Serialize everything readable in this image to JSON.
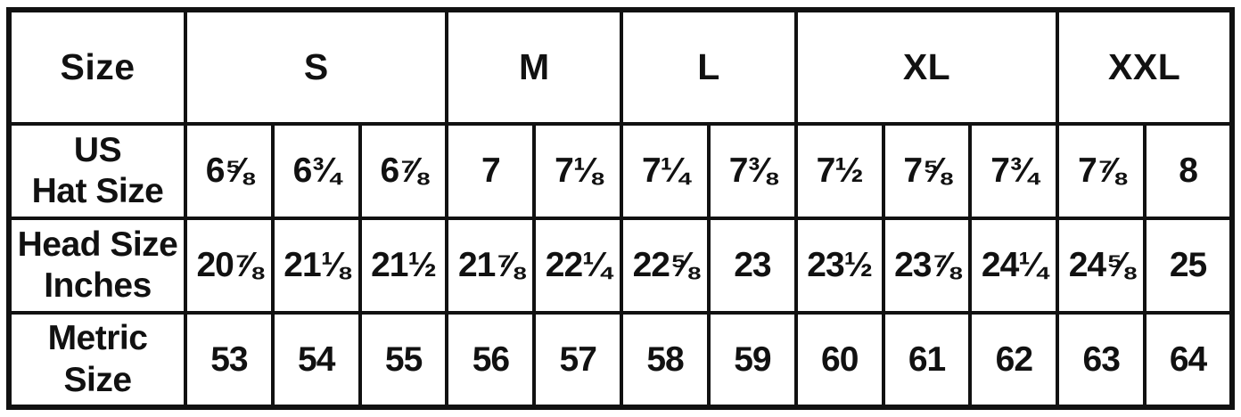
{
  "colors": {
    "border": "#111111",
    "text": "#111111",
    "background": "#ffffff"
  },
  "chart_data": {
    "type": "table",
    "corner_header": "Size",
    "size_groups": [
      {
        "label": "S",
        "span": 3
      },
      {
        "label": "M",
        "span": 2
      },
      {
        "label": "L",
        "span": 2
      },
      {
        "label": "XL",
        "span": 3
      },
      {
        "label": "XXL",
        "span": 2
      }
    ],
    "rows": [
      {
        "label_lines": [
          "US",
          "Hat Size"
        ],
        "values": [
          "6⅝",
          "6¾",
          "6⅞",
          "7",
          "7⅛",
          "7¼",
          "7⅜",
          "7½",
          "7⅝",
          "7¾",
          "7⅞",
          "8"
        ]
      },
      {
        "label_lines": [
          "Head Size",
          "Inches"
        ],
        "values": [
          "20⅞",
          "21⅛",
          "21½",
          "21⅞",
          "22¼",
          "22⅝",
          "23",
          "23½",
          "23⅞",
          "24¼",
          "24⅝",
          "25"
        ]
      },
      {
        "label_lines": [
          "Metric",
          "Size"
        ],
        "values": [
          "53",
          "54",
          "55",
          "56",
          "57",
          "58",
          "59",
          "60",
          "61",
          "62",
          "63",
          "64"
        ]
      }
    ]
  }
}
